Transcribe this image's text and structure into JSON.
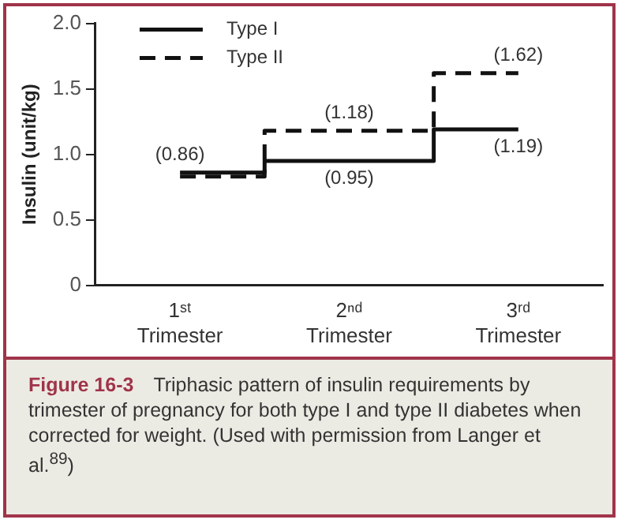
{
  "chart_data": {
    "type": "step",
    "ylabel": "Insulin (unit/kg)",
    "categories": [
      "1ˢᵗ Trimester",
      "2ⁿᵈ Trimester",
      "3ʳᵈ Trimester"
    ],
    "series": [
      {
        "name": "Type I",
        "color": "#111111",
        "line_style": "solid",
        "values": [
          0.86,
          0.95,
          1.19
        ],
        "value_labels": [
          "(0.86)",
          "(0.95)",
          "(1.19)"
        ]
      },
      {
        "name": "Type II",
        "color": "#111111",
        "line_style": "dashed",
        "values": [
          0.83,
          1.18,
          1.62
        ],
        "value_labels": [
          null,
          "(1.18)",
          "(1.62)"
        ]
      }
    ],
    "ylim": [
      0,
      2
    ],
    "yticks": [
      0,
      {
        "value": 0.5,
        "label": "0.5"
      },
      {
        "value": 1,
        "label": "1.0"
      },
      {
        "value": 1.5,
        "label": "1.5"
      },
      {
        "value": 2,
        "label": "2.0"
      }
    ],
    "grid": false,
    "legend": "top left",
    "marker": "none",
    "annotations": [
      "Figure 16-3 Triphasic pattern of insulin requirements by trimester of pregnancy for both type I and type II diabetes when corrected for weight. (Used with permission from Langer et al.$^{89}$)"
    ]
  }
}
